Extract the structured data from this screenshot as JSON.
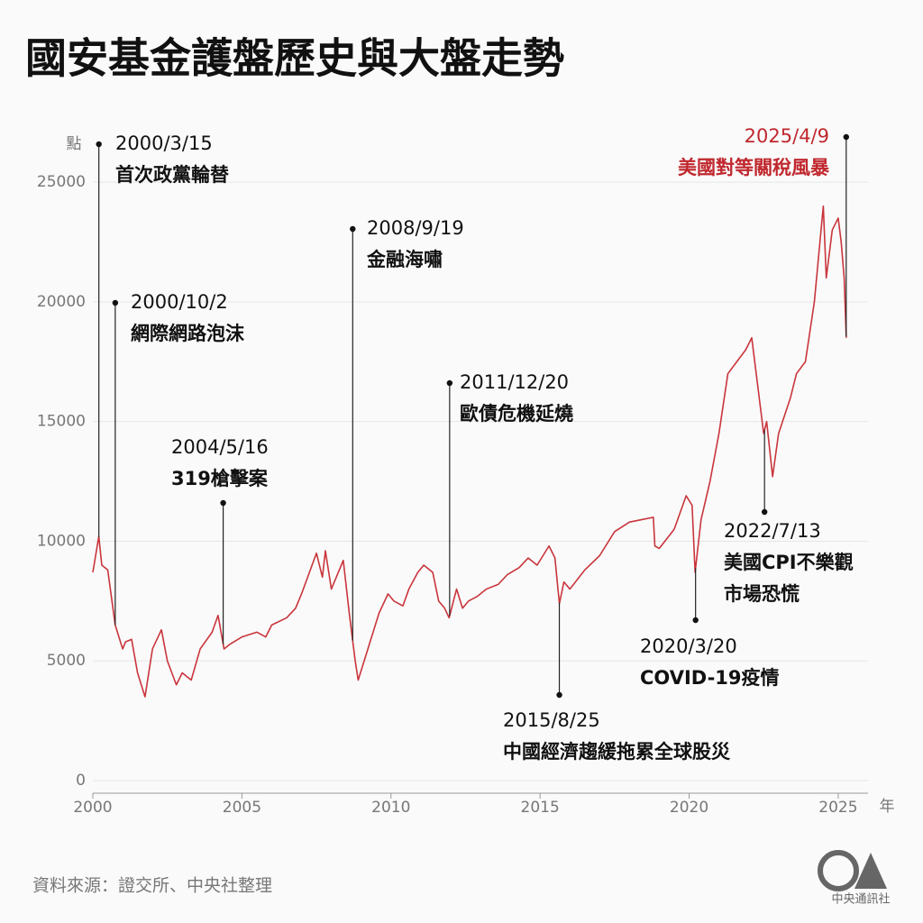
{
  "chart_data": {
    "type": "line",
    "title": "國安基金護盤歷史與大盤走勢",
    "y_label": "點",
    "x_label": "年",
    "source": "資料來源：證交所、中央社整理",
    "logo_text": "中央通訊社",
    "color": "#c9353c",
    "grid": true,
    "xlim": [
      2000,
      2026
    ],
    "ylim": [
      0,
      27000
    ],
    "xticks": [
      2000,
      2005,
      2010,
      2015,
      2020,
      2025
    ],
    "yticks": [
      0,
      5000,
      10000,
      15000,
      20000,
      25000
    ],
    "x": [
      2000.0,
      2000.2,
      2000.3,
      2000.5,
      2000.75,
      2001.0,
      2001.1,
      2001.3,
      2001.5,
      2001.75,
      2002.0,
      2002.3,
      2002.5,
      2002.8,
      2003.0,
      2003.3,
      2003.6,
      2004.0,
      2004.2,
      2004.4,
      2004.6,
      2005.0,
      2005.5,
      2005.8,
      2006.0,
      2006.5,
      2006.8,
      2007.0,
      2007.5,
      2007.7,
      2007.8,
      2008.0,
      2008.4,
      2008.6,
      2008.8,
      2008.9,
      2009.0,
      2009.3,
      2009.6,
      2009.9,
      2010.1,
      2010.4,
      2010.6,
      2010.9,
      2011.1,
      2011.4,
      2011.6,
      2011.8,
      2011.95,
      2012.2,
      2012.4,
      2012.6,
      2012.9,
      2013.2,
      2013.6,
      2013.9,
      2014.3,
      2014.6,
      2014.9,
      2015.3,
      2015.5,
      2015.6,
      2015.65,
      2015.8,
      2016.0,
      2016.5,
      2017.0,
      2017.5,
      2018.0,
      2018.4,
      2018.8,
      2018.85,
      2019.0,
      2019.5,
      2019.9,
      2020.1,
      2020.2,
      2020.4,
      2020.7,
      2021.0,
      2021.3,
      2021.6,
      2021.9,
      2022.1,
      2022.3,
      2022.5,
      2022.6,
      2022.8,
      2023.0,
      2023.4,
      2023.6,
      2023.9,
      2024.2,
      2024.5,
      2024.6,
      2024.8,
      2025.0,
      2025.1,
      2025.2,
      2025.27
    ],
    "values": [
      8700,
      10200,
      9000,
      8800,
      6500,
      5500,
      5800,
      5900,
      4500,
      3500,
      5500,
      6300,
      5000,
      4000,
      4500,
      4200,
      5500,
      6200,
      6900,
      5500,
      5700,
      6000,
      6200,
      6000,
      6500,
      6800,
      7200,
      7800,
      9500,
      8500,
      9600,
      8000,
      9200,
      7000,
      5000,
      4200,
      4600,
      5800,
      7000,
      7800,
      7500,
      7300,
      8000,
      8700,
      9000,
      8700,
      7500,
      7200,
      6800,
      8000,
      7200,
      7500,
      7700,
      8000,
      8200,
      8600,
      8900,
      9300,
      9000,
      9800,
      9300,
      8000,
      7400,
      8300,
      8000,
      8800,
      9400,
      10400,
      10800,
      10900,
      11000,
      9800,
      9700,
      10500,
      11900,
      11500,
      8700,
      10900,
      12500,
      14500,
      17000,
      17500,
      18000,
      18500,
      16500,
      14500,
      15000,
      12700,
      14500,
      16000,
      17000,
      17500,
      20000,
      24000,
      21000,
      23000,
      23500,
      22500,
      21000,
      18500
    ],
    "annotations": [
      {
        "date": "2000/3/15",
        "lines": [
          "首次政黨輪替"
        ],
        "color": "#111111"
      },
      {
        "date": "2000/10/2",
        "lines": [
          "網際網路泡沫"
        ],
        "color": "#111111"
      },
      {
        "date": "2004/5/16",
        "lines": [
          "319槍擊案"
        ],
        "color": "#111111"
      },
      {
        "date": "2008/9/19",
        "lines": [
          "金融海嘯"
        ],
        "color": "#111111"
      },
      {
        "date": "2011/12/20",
        "lines": [
          "歐債危機延燒"
        ],
        "color": "#111111"
      },
      {
        "date": "2015/8/25",
        "lines": [
          "中國經濟趨緩拖累全球股災"
        ],
        "color": "#111111"
      },
      {
        "date": "2020/3/20",
        "lines": [
          "COVID-19疫情"
        ],
        "color": "#111111"
      },
      {
        "date": "2022/7/13",
        "lines": [
          "美國CPI不樂觀",
          "市場恐慌"
        ],
        "color": "#111111"
      },
      {
        "date": "2025/4/9",
        "lines": [
          "美國對等關稅風暴"
        ],
        "color": "#c0282e"
      }
    ]
  }
}
